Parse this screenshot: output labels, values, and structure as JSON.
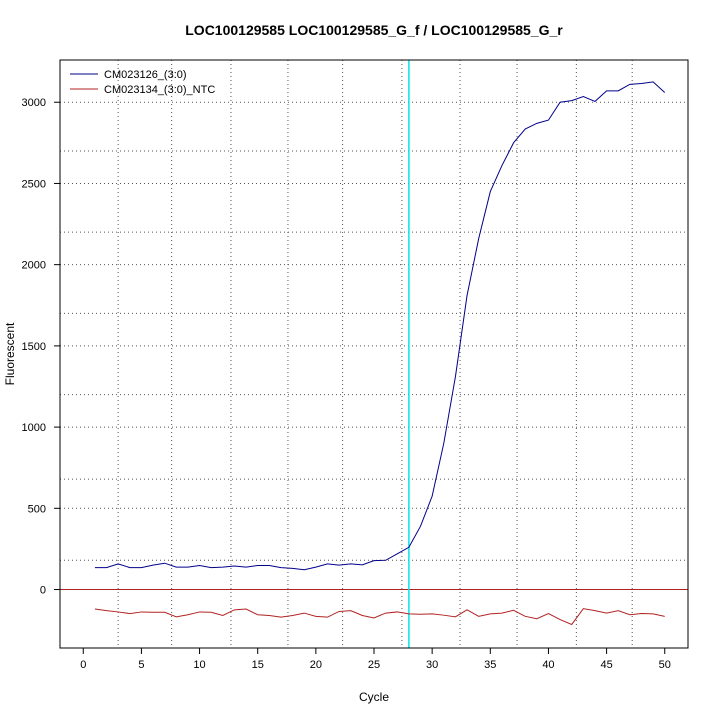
{
  "chart_data": {
    "type": "line",
    "title": "LOC100129585  LOC100129585_G_f / LOC100129585_G_r",
    "xlabel": "Cycle",
    "ylabel": "Fluorescent",
    "xlim": [
      -2,
      52
    ],
    "ylim": [
      -360,
      3260
    ],
    "xticks": [
      0,
      5,
      10,
      15,
      20,
      25,
      30,
      35,
      40,
      45,
      50
    ],
    "yticks": [
      0,
      500,
      1000,
      1500,
      2000,
      2500,
      3000
    ],
    "grid": {
      "vertical_cycles": [
        3,
        7.6,
        12.7,
        17.6,
        22.3,
        27.4,
        32.4,
        37.3,
        42.4,
        47.2
      ],
      "horizontal_values": [
        3000,
        2700,
        2500,
        2200,
        2000,
        1700,
        1500,
        1200,
        1000,
        680,
        500,
        180
      ]
    },
    "threshold_cycle": 28,
    "threshold_color": "#00e5ee",
    "baseline_value": 0,
    "baseline_color": "#b22222",
    "legend_position": "top-left",
    "series": [
      {
        "name": "CM023126_(3:0)",
        "color": "#00008b",
        "x": [
          1,
          2,
          3,
          4,
          5,
          6,
          7,
          8,
          9,
          10,
          11,
          12,
          13,
          14,
          15,
          16,
          17,
          18,
          19,
          20,
          21,
          22,
          23,
          24,
          25,
          26,
          27,
          28,
          29,
          30,
          31,
          32,
          33,
          34,
          35,
          36,
          37,
          38,
          39,
          40,
          41,
          42,
          43,
          44,
          45,
          46,
          47,
          48,
          49,
          50
        ],
        "y": [
          135,
          135,
          158,
          135,
          135,
          150,
          162,
          138,
          138,
          148,
          135,
          138,
          145,
          138,
          148,
          148,
          135,
          130,
          122,
          138,
          158,
          150,
          158,
          152,
          178,
          180,
          220,
          260,
          390,
          575,
          900,
          1310,
          1810,
          2160,
          2450,
          2610,
          2750,
          2835,
          2870,
          2890,
          3000,
          3010,
          3035,
          3005,
          3070,
          3070,
          3110,
          3115,
          3125,
          3060
        ]
      },
      {
        "name": "CM023134_(3:0)_NTC",
        "color": "#b22222",
        "x": [
          1,
          2,
          3,
          4,
          5,
          6,
          7,
          8,
          9,
          10,
          11,
          12,
          13,
          14,
          15,
          16,
          17,
          18,
          19,
          20,
          21,
          22,
          23,
          24,
          25,
          26,
          27,
          28,
          29,
          30,
          31,
          32,
          33,
          34,
          35,
          36,
          37,
          38,
          39,
          40,
          41,
          42,
          43,
          44,
          45,
          46,
          47,
          48,
          49,
          50
        ],
        "y": [
          -120,
          -130,
          -138,
          -148,
          -138,
          -140,
          -140,
          -168,
          -155,
          -138,
          -140,
          -160,
          -125,
          -120,
          -155,
          -160,
          -170,
          -160,
          -145,
          -165,
          -170,
          -135,
          -130,
          -160,
          -175,
          -145,
          -138,
          -150,
          -152,
          -150,
          -158,
          -168,
          -125,
          -165,
          -150,
          -145,
          -128,
          -165,
          -180,
          -148,
          -185,
          -215,
          -118,
          -130,
          -145,
          -130,
          -155,
          -148,
          -150,
          -165
        ]
      }
    ]
  }
}
